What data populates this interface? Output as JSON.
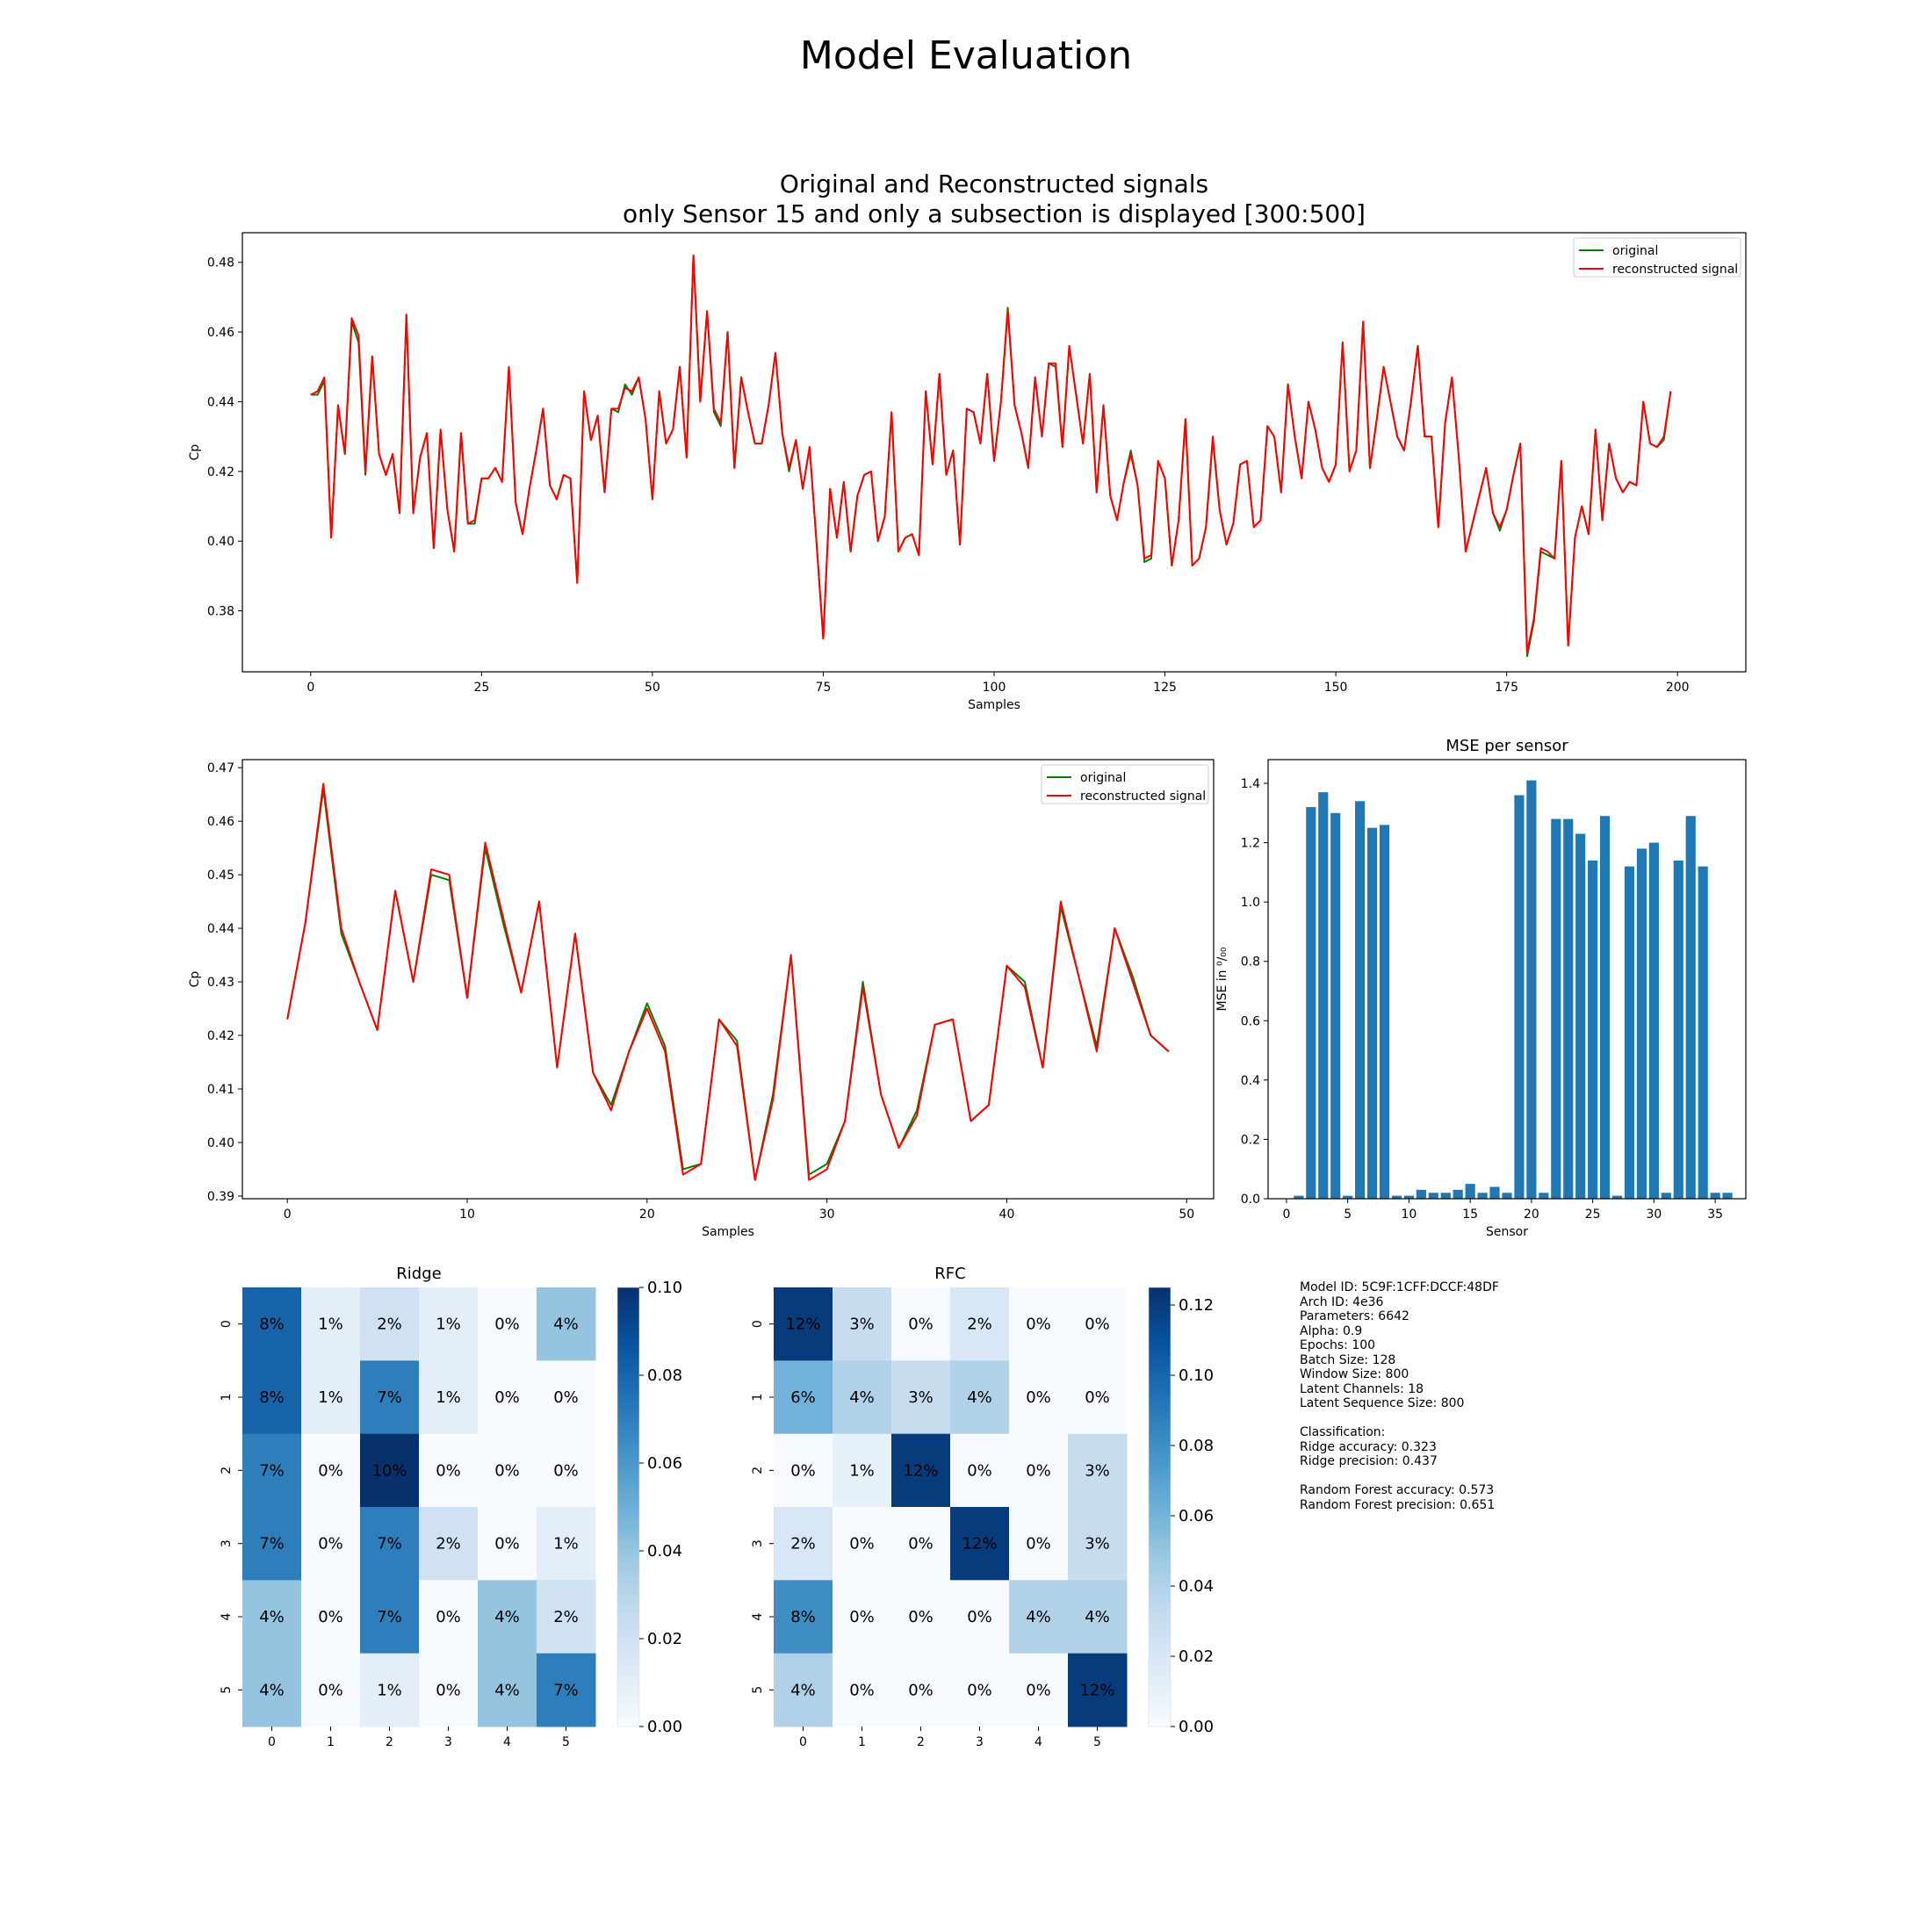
{
  "figure_title": "Model Evaluation",
  "chart_data": [
    {
      "id": "top",
      "type": "line",
      "title": "Original and Reconstructed signals\nonly Sensor 15 and  only a subsection is displayed [300:500]",
      "xlabel": "Samples",
      "ylabel": "Cp",
      "xlim": [
        -10,
        210
      ],
      "ylim": [
        0.3625,
        0.4885
      ],
      "xticks": [
        0,
        25,
        50,
        75,
        100,
        125,
        150,
        175,
        200
      ],
      "yticks": [
        0.38,
        0.4,
        0.42,
        0.44,
        0.46,
        0.48
      ],
      "legend": "top-right",
      "series": [
        {
          "name": "original",
          "color": "#008000",
          "values": [
            0.442,
            0.442,
            0.446,
            0.401,
            0.439,
            0.425,
            0.463,
            0.457,
            0.419,
            0.453,
            0.425,
            0.419,
            0.425,
            0.408,
            0.465,
            0.408,
            0.424,
            0.431,
            0.398,
            0.432,
            0.409,
            0.397,
            0.431,
            0.405,
            0.405,
            0.418,
            0.418,
            0.421,
            0.417,
            0.45,
            0.411,
            0.402,
            0.415,
            0.426,
            0.438,
            0.416,
            0.412,
            0.419,
            0.418,
            0.388,
            0.443,
            0.429,
            0.436,
            0.414,
            0.438,
            0.437,
            0.445,
            0.442,
            0.447,
            0.435,
            0.412,
            0.443,
            0.428,
            0.432,
            0.45,
            0.424,
            0.482,
            0.44,
            0.466,
            0.437,
            0.433,
            0.46,
            0.421,
            0.447,
            0.437,
            0.428,
            0.428,
            0.439,
            0.454,
            0.431,
            0.42,
            0.429,
            0.415,
            0.427,
            0.4,
            0.372,
            0.415,
            0.401,
            0.417,
            0.397,
            0.413,
            0.419,
            0.42,
            0.4,
            0.407,
            0.437,
            0.397,
            0.401,
            0.402,
            0.396,
            0.443,
            0.422,
            0.448,
            0.419,
            0.426,
            0.399,
            0.438,
            0.437,
            0.428,
            0.448,
            0.423,
            0.44,
            0.467,
            0.439,
            0.431,
            0.421,
            0.447,
            0.43,
            0.451,
            0.45,
            0.427,
            0.456,
            0.442,
            0.428,
            0.448,
            0.414,
            0.439,
            0.413,
            0.406,
            0.417,
            0.426,
            0.416,
            0.394,
            0.395,
            0.423,
            0.418,
            0.393,
            0.406,
            0.435,
            0.393,
            0.395,
            0.404,
            0.429,
            0.409,
            0.399,
            0.405,
            0.422,
            0.423,
            0.404,
            0.406,
            0.433,
            0.43,
            0.414,
            0.445,
            0.43,
            0.418,
            0.44,
            0.432,
            0.421,
            0.417,
            0.422,
            0.457,
            0.42,
            0.426,
            0.463,
            0.421,
            0.435,
            0.45,
            0.44,
            0.43,
            0.426,
            0.44,
            0.456,
            0.43,
            0.43,
            0.404,
            0.434,
            0.447,
            0.424,
            0.397,
            0.405,
            0.413,
            0.421,
            0.408,
            0.403,
            0.409,
            0.419,
            0.428,
            0.367,
            0.377,
            0.397,
            0.396,
            0.395,
            0.423,
            0.37,
            0.401,
            0.41,
            0.402,
            0.432,
            0.406,
            0.428,
            0.418,
            0.414,
            0.417,
            0.416,
            0.44,
            0.428,
            0.427,
            0.429,
            0.443
          ]
        },
        {
          "name": "reconstructed signal",
          "color": "#ff0000",
          "values": [
            0.442,
            0.443,
            0.447,
            0.401,
            0.439,
            0.425,
            0.464,
            0.459,
            0.42,
            0.453,
            0.425,
            0.419,
            0.425,
            0.408,
            0.465,
            0.408,
            0.424,
            0.431,
            0.398,
            0.432,
            0.409,
            0.397,
            0.431,
            0.405,
            0.406,
            0.418,
            0.418,
            0.421,
            0.417,
            0.45,
            0.411,
            0.402,
            0.415,
            0.426,
            0.438,
            0.416,
            0.412,
            0.419,
            0.418,
            0.388,
            0.443,
            0.429,
            0.436,
            0.414,
            0.438,
            0.438,
            0.444,
            0.443,
            0.447,
            0.435,
            0.412,
            0.443,
            0.428,
            0.432,
            0.45,
            0.424,
            0.482,
            0.44,
            0.466,
            0.438,
            0.434,
            0.46,
            0.421,
            0.447,
            0.437,
            0.428,
            0.428,
            0.439,
            0.454,
            0.431,
            0.421,
            0.429,
            0.415,
            0.427,
            0.4,
            0.372,
            0.415,
            0.401,
            0.417,
            0.397,
            0.413,
            0.419,
            0.42,
            0.4,
            0.407,
            0.437,
            0.397,
            0.401,
            0.402,
            0.396,
            0.443,
            0.422,
            0.448,
            0.419,
            0.426,
            0.399,
            0.438,
            0.437,
            0.428,
            0.448,
            0.423,
            0.44,
            0.466,
            0.439,
            0.431,
            0.421,
            0.447,
            0.43,
            0.451,
            0.451,
            0.427,
            0.456,
            0.442,
            0.428,
            0.448,
            0.414,
            0.439,
            0.413,
            0.406,
            0.417,
            0.425,
            0.416,
            0.395,
            0.396,
            0.423,
            0.418,
            0.393,
            0.406,
            0.435,
            0.393,
            0.395,
            0.404,
            0.43,
            0.409,
            0.399,
            0.405,
            0.422,
            0.423,
            0.404,
            0.406,
            0.433,
            0.43,
            0.414,
            0.445,
            0.43,
            0.418,
            0.44,
            0.432,
            0.421,
            0.417,
            0.422,
            0.457,
            0.42,
            0.426,
            0.463,
            0.421,
            0.435,
            0.45,
            0.44,
            0.43,
            0.426,
            0.44,
            0.456,
            0.43,
            0.43,
            0.404,
            0.434,
            0.447,
            0.424,
            0.397,
            0.405,
            0.413,
            0.421,
            0.408,
            0.404,
            0.409,
            0.419,
            0.428,
            0.368,
            0.378,
            0.398,
            0.397,
            0.395,
            0.423,
            0.37,
            0.401,
            0.41,
            0.402,
            0.432,
            0.406,
            0.428,
            0.418,
            0.414,
            0.417,
            0.416,
            0.44,
            0.428,
            0.427,
            0.43,
            0.443
          ]
        }
      ]
    },
    {
      "id": "mid",
      "type": "line",
      "xlabel": "Samples",
      "ylabel": "Cp",
      "xlim": [
        -2.5,
        51.5
      ],
      "ylim": [
        0.3895,
        0.4715
      ],
      "xticks": [
        0,
        10,
        20,
        30,
        40,
        50
      ],
      "yticks": [
        0.39,
        0.4,
        0.41,
        0.42,
        0.43,
        0.44,
        0.45,
        0.46,
        0.47
      ],
      "legend": "top-right",
      "series": [
        {
          "name": "original",
          "color": "#008000",
          "values": [
            0.423,
            0.441,
            0.466,
            0.439,
            0.43,
            0.421,
            0.447,
            0.43,
            0.45,
            0.449,
            0.427,
            0.455,
            0.441,
            0.428,
            0.445,
            0.414,
            0.439,
            0.413,
            0.407,
            0.417,
            0.426,
            0.418,
            0.395,
            0.396,
            0.423,
            0.419,
            0.393,
            0.409,
            0.435,
            0.394,
            0.396,
            0.404,
            0.43,
            0.409,
            0.399,
            0.406,
            0.422,
            0.423,
            0.404,
            0.407,
            0.433,
            0.43,
            0.414,
            0.444,
            0.431,
            0.418,
            0.44,
            0.431,
            0.42,
            0.417
          ]
        },
        {
          "name": "reconstructed signal",
          "color": "#ff0000",
          "values": [
            0.423,
            0.441,
            0.467,
            0.44,
            0.43,
            0.421,
            0.447,
            0.43,
            0.451,
            0.45,
            0.427,
            0.456,
            0.442,
            0.428,
            0.445,
            0.414,
            0.439,
            0.413,
            0.406,
            0.417,
            0.425,
            0.417,
            0.394,
            0.396,
            0.423,
            0.418,
            0.393,
            0.408,
            0.435,
            0.393,
            0.395,
            0.404,
            0.429,
            0.409,
            0.399,
            0.405,
            0.422,
            0.423,
            0.404,
            0.407,
            0.433,
            0.429,
            0.414,
            0.445,
            0.431,
            0.417,
            0.44,
            0.43,
            0.42,
            0.417
          ]
        }
      ]
    },
    {
      "id": "mse",
      "type": "bar",
      "title": "MSE per sensor",
      "xlabel": "Sensor",
      "ylabel": "MSE in ⁰/₀₀",
      "xlim": [
        -1.5,
        37.5
      ],
      "ylim": [
        0,
        1.48
      ],
      "xticks": [
        0,
        5,
        10,
        15,
        20,
        25,
        30,
        35
      ],
      "yticks": [
        0.0,
        0.2,
        0.4,
        0.6,
        0.8,
        1.0,
        1.2,
        1.4
      ],
      "color": "#1f77b4",
      "categories": [
        0,
        1,
        2,
        3,
        4,
        5,
        6,
        7,
        8,
        9,
        10,
        11,
        12,
        13,
        14,
        15,
        16,
        17,
        18,
        19,
        20,
        21,
        22,
        23,
        24,
        25,
        26,
        27,
        28,
        29,
        30,
        31,
        32,
        33,
        34,
        35,
        36
      ],
      "values": [
        0.0,
        0.01,
        1.32,
        1.37,
        1.3,
        0.01,
        1.34,
        1.25,
        1.26,
        0.01,
        0.01,
        0.03,
        0.02,
        0.02,
        0.03,
        0.05,
        0.02,
        0.04,
        0.02,
        1.36,
        1.41,
        0.02,
        1.28,
        1.28,
        1.23,
        1.14,
        1.29,
        0.01,
        1.12,
        1.18,
        1.2,
        0.02,
        1.14,
        1.29,
        1.12,
        0.02,
        0.02
      ]
    },
    {
      "id": "ridge",
      "type": "heatmap",
      "title": "Ridge",
      "xticks": [
        0,
        1,
        2,
        3,
        4,
        5
      ],
      "yticks": [
        0,
        1,
        2,
        3,
        4,
        5
      ],
      "colorbar_range": [
        0,
        0.1
      ],
      "colorbar_ticks": [
        "0.00",
        "0.02",
        "0.04",
        "0.06",
        "0.08",
        "0.10"
      ],
      "values": [
        [
          0.08,
          0.01,
          0.02,
          0.01,
          0.0,
          0.04
        ],
        [
          0.08,
          0.01,
          0.07,
          0.01,
          0.0,
          0.0
        ],
        [
          0.07,
          0.0,
          0.1,
          0.0,
          0.0,
          0.0
        ],
        [
          0.07,
          0.0,
          0.07,
          0.02,
          0.0,
          0.01
        ],
        [
          0.04,
          0.0,
          0.07,
          0.0,
          0.04,
          0.02
        ],
        [
          0.04,
          0.0,
          0.01,
          0.0,
          0.04,
          0.07
        ]
      ],
      "labels": [
        [
          "8%",
          "1%",
          "2%",
          "1%",
          "0%",
          "4%"
        ],
        [
          "8%",
          "1%",
          "7%",
          "1%",
          "0%",
          "0%"
        ],
        [
          "7%",
          "0%",
          "10%",
          "0%",
          "0%",
          "0%"
        ],
        [
          "7%",
          "0%",
          "7%",
          "2%",
          "0%",
          "1%"
        ],
        [
          "4%",
          "0%",
          "7%",
          "0%",
          "4%",
          "2%"
        ],
        [
          "4%",
          "0%",
          "1%",
          "0%",
          "4%",
          "7%"
        ]
      ]
    },
    {
      "id": "rfc",
      "type": "heatmap",
      "title": "RFC",
      "xticks": [
        0,
        1,
        2,
        3,
        4,
        5
      ],
      "yticks": [
        0,
        1,
        2,
        3,
        4,
        5
      ],
      "colorbar_range": [
        0,
        0.125
      ],
      "colorbar_ticks": [
        "0.00",
        "0.02",
        "0.04",
        "0.06",
        "0.08",
        "0.10",
        "0.12"
      ],
      "values": [
        [
          0.12,
          0.03,
          0.0,
          0.02,
          0.0,
          0.0
        ],
        [
          0.06,
          0.04,
          0.03,
          0.04,
          0.0,
          0.0
        ],
        [
          0.0,
          0.01,
          0.12,
          0.0,
          0.0,
          0.03
        ],
        [
          0.02,
          0.0,
          0.0,
          0.12,
          0.0,
          0.03
        ],
        [
          0.08,
          0.0,
          0.0,
          0.0,
          0.04,
          0.04
        ],
        [
          0.04,
          0.0,
          0.0,
          0.0,
          0.0,
          0.12
        ]
      ],
      "labels": [
        [
          "12%",
          "3%",
          "0%",
          "2%",
          "0%",
          "0%"
        ],
        [
          "6%",
          "4%",
          "3%",
          "4%",
          "0%",
          "0%"
        ],
        [
          "0%",
          "1%",
          "12%",
          "0%",
          "0%",
          "3%"
        ],
        [
          "2%",
          "0%",
          "0%",
          "12%",
          "0%",
          "3%"
        ],
        [
          "8%",
          "0%",
          "0%",
          "0%",
          "4%",
          "4%"
        ],
        [
          "4%",
          "0%",
          "0%",
          "0%",
          "0%",
          "12%"
        ]
      ]
    }
  ],
  "model_info": {
    "text": "Model ID: 5C9F:1CFF:DCCF:48DF\nArch ID: 4e36\nParameters: 6642\nAlpha: 0.9\nEpochs: 100\nBatch Size: 128\nWindow Size: 800\nLatent Channels: 18\nLatent Sequence Size: 800\n\nClassification:\nRidge accuracy: 0.323\nRidge precision: 0.437\n\nRandom Forest accuracy: 0.573\nRandom Forest precision: 0.651"
  }
}
